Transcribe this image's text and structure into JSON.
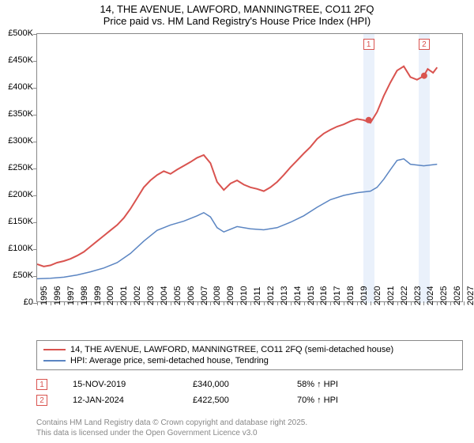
{
  "title_line1": "14, THE AVENUE, LAWFORD, MANNINGTREE, CO11 2FQ",
  "title_line2": "Price paid vs. HM Land Registry's House Price Index (HPI)",
  "chart": {
    "type": "line",
    "background_color": "#ffffff",
    "border_color": "#888888",
    "xlim": [
      1995,
      2027
    ],
    "ylim": [
      0,
      500000
    ],
    "x_ticks": [
      1995,
      1996,
      1997,
      1998,
      1999,
      2000,
      2001,
      2002,
      2003,
      2004,
      2005,
      2006,
      2007,
      2008,
      2009,
      2010,
      2011,
      2012,
      2013,
      2014,
      2015,
      2016,
      2017,
      2018,
      2019,
      2020,
      2021,
      2022,
      2023,
      2024,
      2025,
      2026,
      2027
    ],
    "y_ticks": [
      0,
      50000,
      100000,
      150000,
      200000,
      250000,
      300000,
      350000,
      400000,
      450000,
      500000
    ],
    "y_tick_labels": [
      "£0",
      "£50K",
      "£100K",
      "£150K",
      "£200K",
      "£250K",
      "£300K",
      "£350K",
      "£400K",
      "£450K",
      "£500K"
    ],
    "axis_fontsize": 11,
    "series": [
      {
        "name": "price_paid",
        "color": "#d9534f",
        "width": 2,
        "data": [
          [
            1995,
            72000
          ],
          [
            1995.5,
            68000
          ],
          [
            1996,
            70000
          ],
          [
            1996.5,
            75000
          ],
          [
            1997,
            78000
          ],
          [
            1997.5,
            82000
          ],
          [
            1998,
            88000
          ],
          [
            1998.5,
            95000
          ],
          [
            1999,
            105000
          ],
          [
            1999.5,
            115000
          ],
          [
            2000,
            125000
          ],
          [
            2000.5,
            135000
          ],
          [
            2001,
            145000
          ],
          [
            2001.5,
            158000
          ],
          [
            2002,
            175000
          ],
          [
            2002.5,
            195000
          ],
          [
            2003,
            215000
          ],
          [
            2003.5,
            228000
          ],
          [
            2004,
            238000
          ],
          [
            2004.5,
            245000
          ],
          [
            2005,
            240000
          ],
          [
            2005.5,
            248000
          ],
          [
            2006,
            255000
          ],
          [
            2006.5,
            262000
          ],
          [
            2007,
            270000
          ],
          [
            2007.5,
            275000
          ],
          [
            2008,
            260000
          ],
          [
            2008.5,
            225000
          ],
          [
            2009,
            210000
          ],
          [
            2009.5,
            222000
          ],
          [
            2010,
            228000
          ],
          [
            2010.5,
            220000
          ],
          [
            2011,
            215000
          ],
          [
            2011.5,
            212000
          ],
          [
            2012,
            208000
          ],
          [
            2012.5,
            215000
          ],
          [
            2013,
            225000
          ],
          [
            2013.5,
            238000
          ],
          [
            2014,
            252000
          ],
          [
            2014.5,
            265000
          ],
          [
            2015,
            278000
          ],
          [
            2015.5,
            290000
          ],
          [
            2016,
            305000
          ],
          [
            2016.5,
            315000
          ],
          [
            2017,
            322000
          ],
          [
            2017.5,
            328000
          ],
          [
            2018,
            332000
          ],
          [
            2018.5,
            338000
          ],
          [
            2019,
            342000
          ],
          [
            2019.5,
            340000
          ],
          [
            2020,
            335000
          ],
          [
            2020.5,
            355000
          ],
          [
            2021,
            385000
          ],
          [
            2021.5,
            410000
          ],
          [
            2022,
            432000
          ],
          [
            2022.5,
            440000
          ],
          [
            2023,
            420000
          ],
          [
            2023.5,
            415000
          ],
          [
            2024,
            422000
          ],
          [
            2024.3,
            435000
          ],
          [
            2024.7,
            428000
          ],
          [
            2025,
            438000
          ]
        ]
      },
      {
        "name": "hpi",
        "color": "#5b85c2",
        "width": 1.5,
        "data": [
          [
            1995,
            45000
          ],
          [
            1996,
            46000
          ],
          [
            1997,
            48000
          ],
          [
            1998,
            52000
          ],
          [
            1999,
            58000
          ],
          [
            2000,
            65000
          ],
          [
            2001,
            75000
          ],
          [
            2002,
            92000
          ],
          [
            2003,
            115000
          ],
          [
            2004,
            135000
          ],
          [
            2005,
            145000
          ],
          [
            2006,
            152000
          ],
          [
            2007,
            162000
          ],
          [
            2007.5,
            168000
          ],
          [
            2008,
            160000
          ],
          [
            2008.5,
            140000
          ],
          [
            2009,
            132000
          ],
          [
            2010,
            142000
          ],
          [
            2011,
            138000
          ],
          [
            2012,
            136000
          ],
          [
            2013,
            140000
          ],
          [
            2014,
            150000
          ],
          [
            2015,
            162000
          ],
          [
            2016,
            178000
          ],
          [
            2017,
            192000
          ],
          [
            2018,
            200000
          ],
          [
            2019,
            205000
          ],
          [
            2020,
            208000
          ],
          [
            2020.5,
            215000
          ],
          [
            2021,
            230000
          ],
          [
            2021.5,
            248000
          ],
          [
            2022,
            265000
          ],
          [
            2022.5,
            268000
          ],
          [
            2023,
            258000
          ],
          [
            2024,
            255000
          ],
          [
            2025,
            258000
          ]
        ]
      }
    ],
    "sale_markers": [
      {
        "num": "1",
        "x": 2019.87,
        "date": "15-NOV-2019",
        "price": "£340,000",
        "hpi_delta": "58% ↑ HPI",
        "band_color": "#eaf1fb",
        "border_color": "#d9534f"
      },
      {
        "num": "2",
        "x": 2024.03,
        "date": "12-JAN-2024",
        "price": "£422,500",
        "hpi_delta": "70% ↑ HPI",
        "band_color": "#eaf1fb",
        "border_color": "#d9534f"
      }
    ],
    "sale_points": [
      {
        "x": 2019.87,
        "y": 340000,
        "color": "#d9534f"
      },
      {
        "x": 2024.03,
        "y": 422500,
        "color": "#d9534f"
      }
    ]
  },
  "legend": {
    "items": [
      {
        "label": "14, THE AVENUE, LAWFORD, MANNINGTREE, CO11 2FQ (semi-detached house)",
        "color": "#d9534f",
        "width": 2
      },
      {
        "label": "HPI: Average price, semi-detached house, Tendring",
        "color": "#5b85c2",
        "width": 1.5
      }
    ]
  },
  "footer": {
    "line1": "Contains HM Land Registry data © Crown copyright and database right 2025.",
    "line2": "This data is licensed under the Open Government Licence v3.0"
  }
}
